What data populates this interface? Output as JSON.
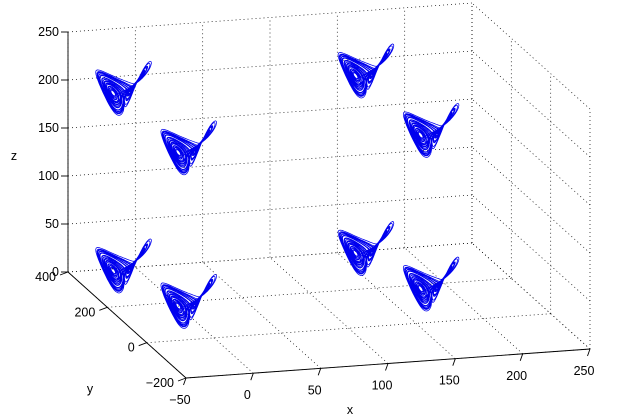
{
  "chart_data": {
    "type": "line",
    "projection": "3d",
    "xlabel": "x",
    "ylabel": "y",
    "zlabel": "z",
    "xlim": [
      -50,
      250
    ],
    "ylim": [
      -200,
      400
    ],
    "zlim": [
      0,
      250
    ],
    "x_ticks": [
      "−50",
      "0",
      "50",
      "100",
      "150",
      "200",
      "250"
    ],
    "y_ticks": [
      "−200",
      "0",
      "200",
      "400"
    ],
    "z_ticks": [
      "0",
      "50",
      "100",
      "150",
      "200",
      "250"
    ],
    "grid": true,
    "line_color": "#0000ee",
    "series": [
      {
        "center": [
          -20,
          320,
          200
        ]
      },
      {
        "center": [
          5,
          160,
          165
        ]
      },
      {
        "center": [
          -20,
          320,
          15
        ]
      },
      {
        "center": [
          5,
          160,
          5
        ]
      },
      {
        "center": [
          160,
          320,
          200
        ]
      },
      {
        "center": [
          185,
          160,
          165
        ]
      },
      {
        "center": [
          160,
          320,
          15
        ]
      },
      {
        "center": [
          185,
          160,
          5
        ]
      }
    ]
  }
}
